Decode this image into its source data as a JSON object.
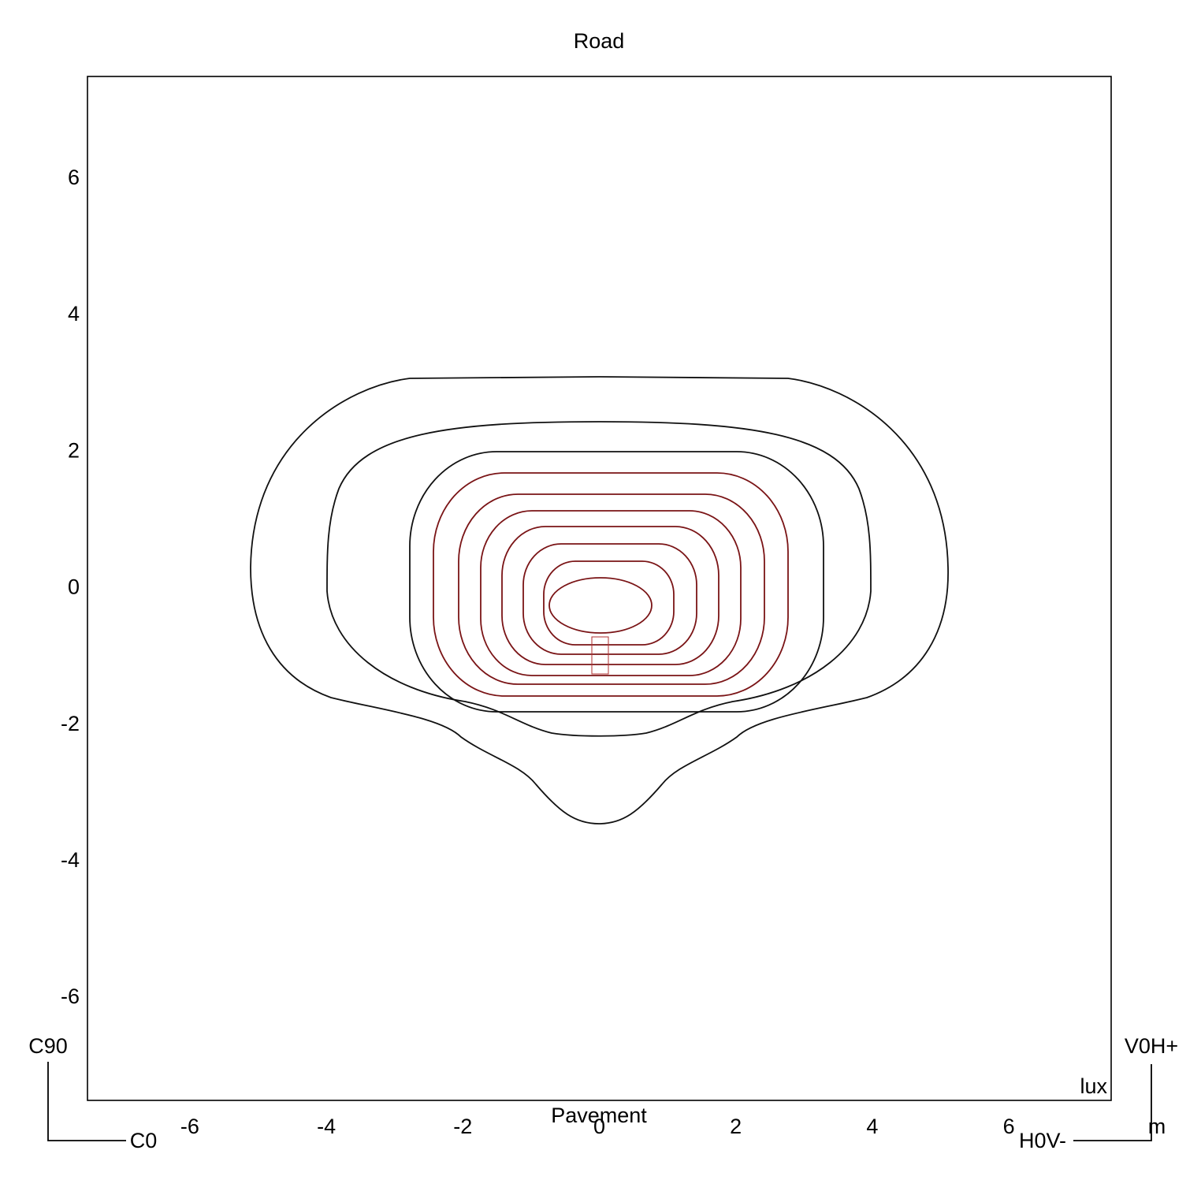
{
  "chart_data": {
    "type": "contour",
    "title": "Road",
    "xlabel": "Pavement",
    "xlim": [
      -7.5,
      7.5
    ],
    "ylim": [
      -7.5,
      7.5
    ],
    "xticks": [
      -6,
      -4,
      -2,
      0,
      2,
      4,
      6
    ],
    "yticks": [
      -6,
      -4,
      -2,
      0,
      2,
      4,
      6
    ],
    "value_unit": "lux",
    "distance_unit": "m",
    "corner_labels": {
      "top_left": "C90",
      "bottom_left": "C0",
      "top_right": "V0H+",
      "bottom_right": "H0V-"
    }
  }
}
